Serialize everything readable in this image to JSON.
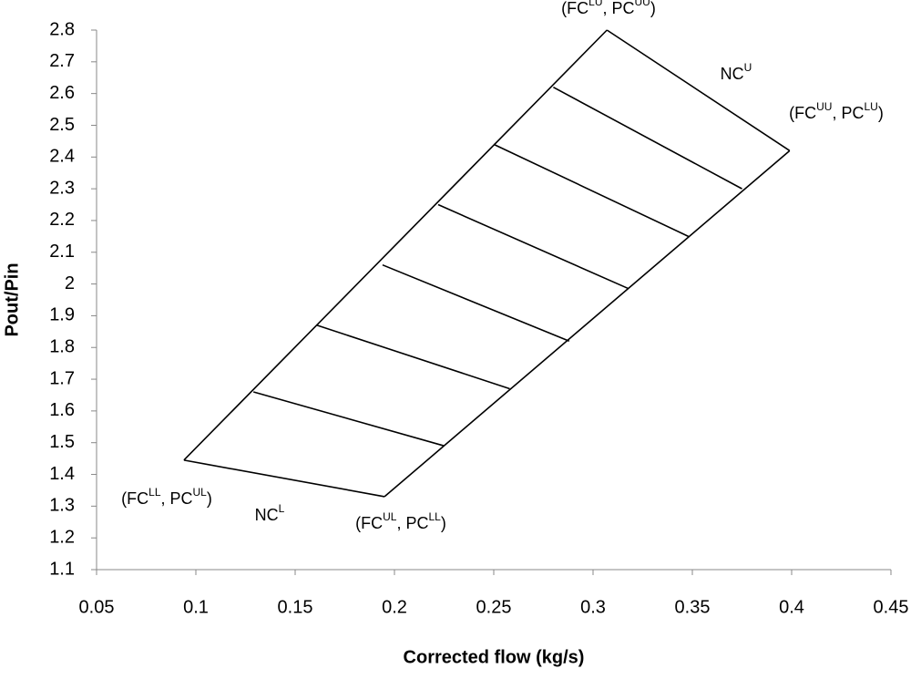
{
  "chart_data": {
    "type": "line",
    "x_label": "Corrected flow (kg/s)",
    "y_label": "Pout/Pin",
    "color": "#000000",
    "xlim": [
      0.05,
      0.45
    ],
    "xticks": [
      0.05,
      0.1,
      0.15,
      0.2,
      0.25,
      0.3,
      0.35,
      0.4,
      0.45
    ],
    "ylim": [
      1.1,
      2.8
    ],
    "yticks": [
      1.1,
      1.2,
      1.3,
      1.4,
      1.5,
      1.6,
      1.7,
      1.8,
      1.9,
      2,
      2.1,
      2.2,
      2.3,
      2.4,
      2.5,
      2.6,
      2.7,
      2.8
    ],
    "grid": false,
    "series": [
      {
        "x": [
          0.094,
          0.307
        ],
        "values": [
          1.445,
          2.8
        ]
      },
      {
        "x": [
          0.195,
          0.399
        ],
        "values": [
          1.33,
          2.42
        ]
      },
      {
        "x": [
          0.094,
          0.195
        ],
        "values": [
          1.445,
          1.33
        ]
      },
      {
        "x": [
          0.307,
          0.399
        ],
        "values": [
          2.8,
          2.42
        ]
      },
      {
        "x": [
          0.129,
          0.225
        ],
        "values": [
          1.66,
          1.49
        ]
      },
      {
        "x": [
          0.161,
          0.258
        ],
        "values": [
          1.87,
          1.67
        ]
      },
      {
        "x": [
          0.194,
          0.288
        ],
        "values": [
          2.06,
          1.82
        ]
      },
      {
        "x": [
          0.222,
          0.318
        ],
        "values": [
          2.25,
          1.985
        ]
      },
      {
        "x": [
          0.25,
          0.348
        ],
        "values": [
          2.44,
          2.15
        ]
      },
      {
        "x": [
          0.28,
          0.375
        ],
        "values": [
          2.62,
          2.3
        ]
      }
    ],
    "annotations": [
      [
        "(FC",
        "LU",
        ", PC",
        "UU",
        ")"
      ],
      [
        "NC",
        "U"
      ],
      [
        "(FC",
        "UU",
        ", PC",
        "LU",
        ")"
      ],
      [
        "(FC",
        "LL",
        ", PC",
        "UL",
        ")"
      ],
      [
        "NC",
        "L"
      ],
      [
        "(FC",
        "UL",
        ", PC",
        "LL",
        ")"
      ]
    ]
  }
}
